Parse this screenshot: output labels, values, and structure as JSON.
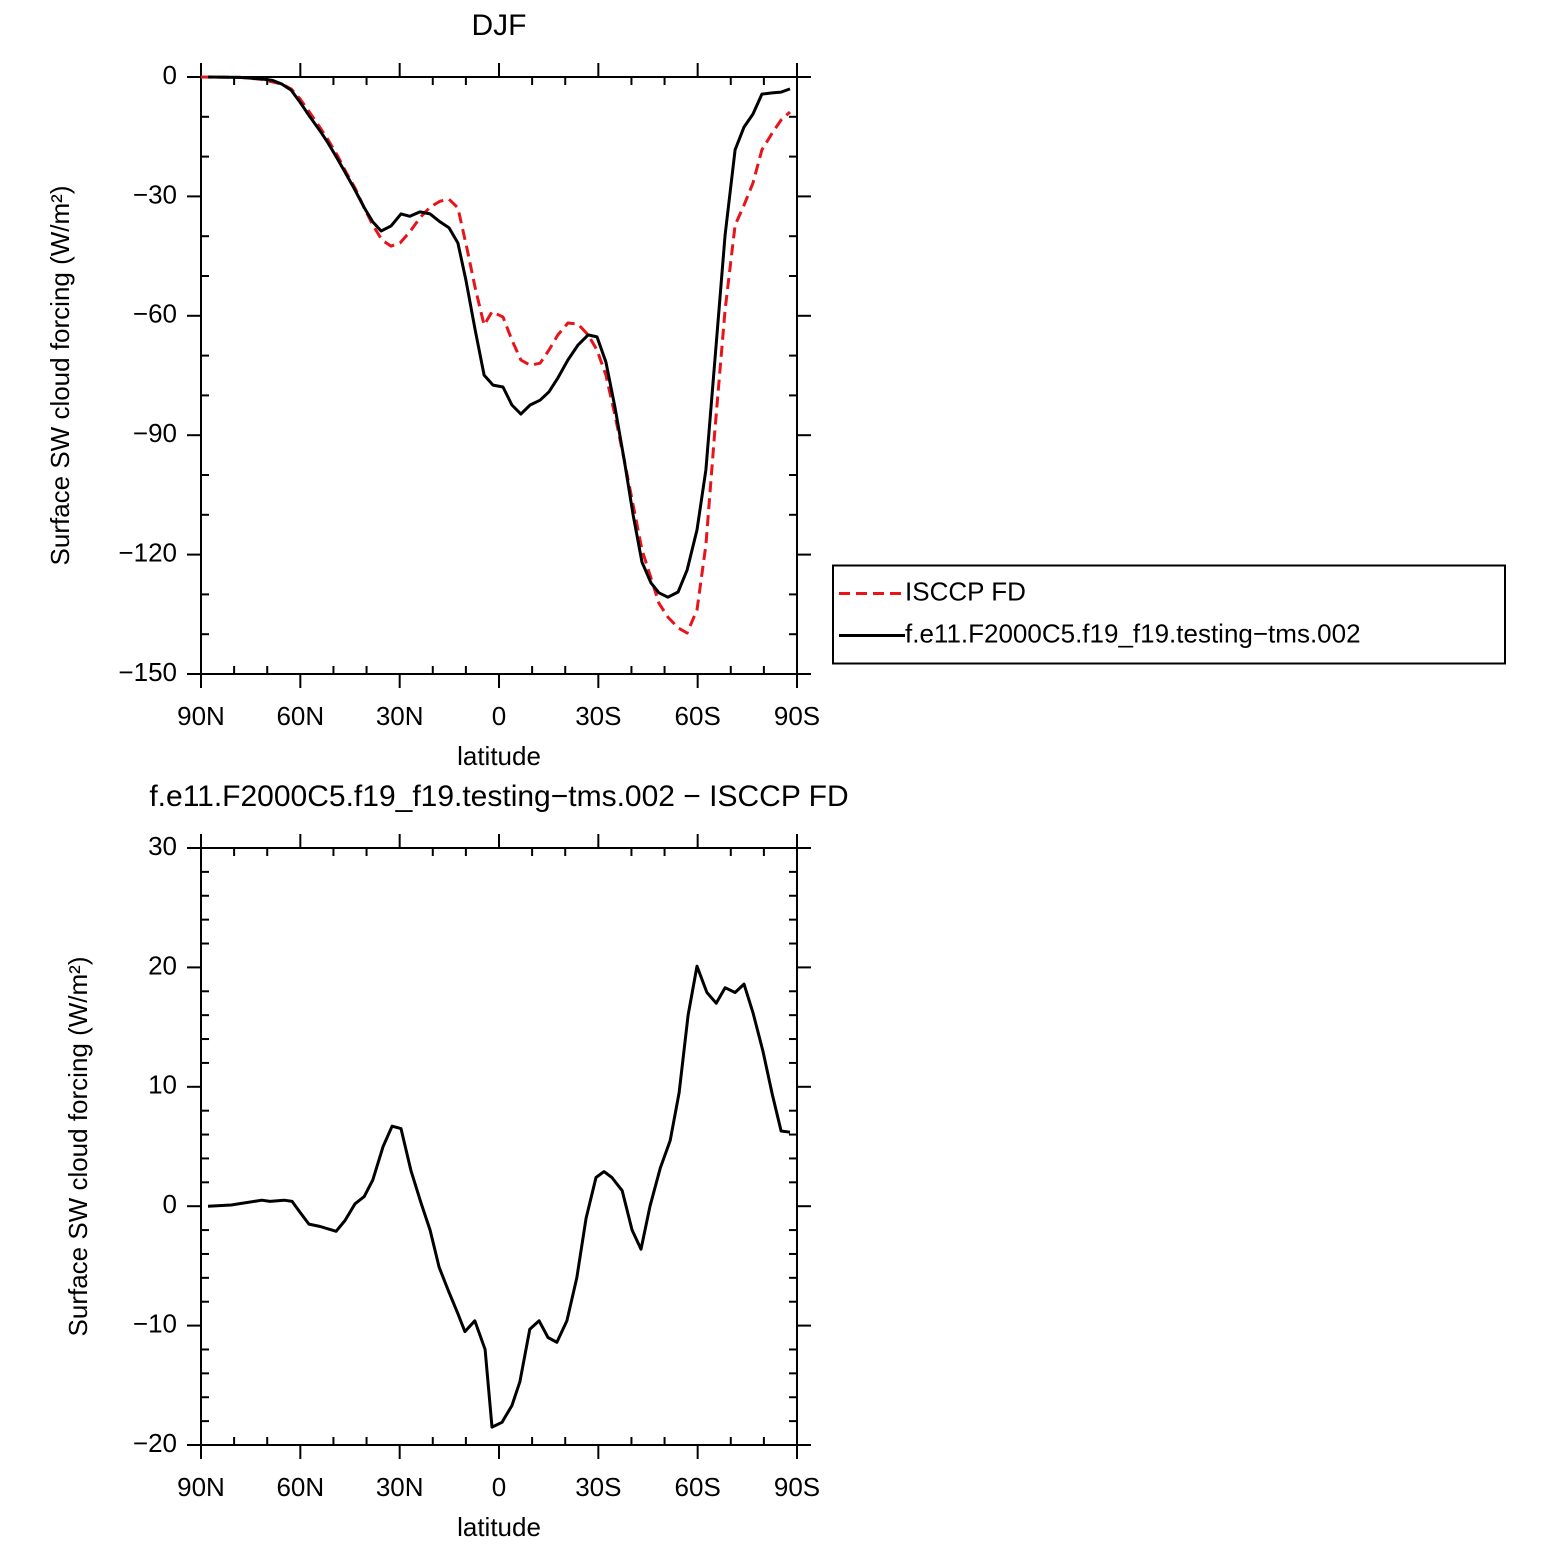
{
  "chart_data": [
    {
      "type": "line",
      "title": "DJF",
      "xlabel": "latitude",
      "ylabel": "Surface SW cloud forcing (W/m²)",
      "xlim": [
        90,
        -90
      ],
      "xticks": [
        {
          "value": 90,
          "label": "90N"
        },
        {
          "value": 60,
          "label": "60N"
        },
        {
          "value": 30,
          "label": "30N"
        },
        0,
        {
          "value": -30,
          "label": "30S"
        },
        {
          "value": -60,
          "label": "60S"
        },
        {
          "value": -90,
          "label": "90S"
        }
      ],
      "ylim": [
        -150,
        0
      ],
      "yticks": [
        0,
        {
          "value": -30,
          "label": "−30"
        },
        {
          "value": -60,
          "label": "−60"
        },
        {
          "value": -90,
          "label": "−90"
        },
        {
          "value": -120,
          "label": "−120"
        },
        {
          "value": -150,
          "label": "−150"
        }
      ],
      "legend": "right",
      "series": [
        {
          "name": "ISCCP FD",
          "color": "#e8141a",
          "dash": true,
          "x": [
            90,
            78.2,
            71.6,
            65.5,
            62.8,
            60.1,
            57.1,
            54.0,
            51.6,
            48.9,
            46.2,
            43.5,
            40.8,
            38.1,
            35.3,
            32.6,
            29.9,
            26.9,
            23.9,
            20.8,
            17.8,
            15.1,
            12.4,
            9.7,
            7.2,
            4.5,
            2.1,
            -1.2,
            -3.9,
            -6.6,
            -9.4,
            -12.4,
            -15.1,
            -17.8,
            -20.8,
            -23.9,
            -26.9,
            -29.6,
            -32.3,
            -35.0,
            -37.8,
            -40.5,
            -43.2,
            -45.9,
            -48.3,
            -51.0,
            -54.1,
            -56.8,
            -59.8,
            -62.5,
            -65.2,
            -68.3,
            -71.3,
            -74.0,
            -76.7,
            -79.4,
            -82.5,
            -85.2,
            -87.9
          ],
          "values": [
            0,
            -0.1,
            -0.6,
            -1.8,
            -3,
            -5.5,
            -9,
            -12.8,
            -15.8,
            -19.6,
            -23.9,
            -27.9,
            -32.7,
            -37.2,
            -41,
            -42.5,
            -41.7,
            -38.9,
            -35.4,
            -32.7,
            -31.2,
            -30.7,
            -32.9,
            -43,
            -53,
            -62.3,
            -59,
            -60.3,
            -66.1,
            -71.1,
            -72.4,
            -71.9,
            -68.6,
            -64.8,
            -61.8,
            -62.1,
            -64.8,
            -68.6,
            -74.9,
            -84.9,
            -96.2,
            -107.5,
            -118.8,
            -125.9,
            -132.2,
            -135.7,
            -138.4,
            -139.7,
            -133.9,
            -117.6,
            -88.7,
            -58.5,
            -37.2,
            -32.2,
            -26.6,
            -18.3,
            -14.1,
            -10.8,
            -8.8
          ]
        },
        {
          "name": "f.e11.F2000C5.f19_f19.testing−tms.002",
          "color": "#000000",
          "dash": false,
          "x": [
            87.9,
            78.2,
            71.6,
            68.6,
            65.5,
            62.8,
            60.1,
            57.1,
            54.0,
            51.6,
            48.9,
            46.5,
            43.5,
            40.8,
            38.1,
            35.6,
            32.6,
            29.6,
            26.9,
            23.9,
            20.8,
            17.8,
            15.1,
            12.4,
            10.0,
            7.2,
            4.5,
            1.8,
            -1.2,
            -3.9,
            -6.6,
            -9.4,
            -12.4,
            -15.1,
            -17.8,
            -20.8,
            -23.9,
            -26.9,
            -29.6,
            -32.3,
            -35.0,
            -37.8,
            -40.5,
            -43.2,
            -45.9,
            -48.3,
            -51.0,
            -54.1,
            -56.8,
            -59.8,
            -62.5,
            -65.2,
            -68.3,
            -71.3,
            -74.0,
            -76.7,
            -79.4,
            -82.5,
            -85.2,
            -87.9
          ],
          "values": [
            0,
            -0.1,
            -0.5,
            -0.8,
            -1.8,
            -3.3,
            -6.3,
            -10,
            -13.6,
            -16.6,
            -20.4,
            -23.9,
            -28.4,
            -32.7,
            -36.4,
            -38.7,
            -37.4,
            -34.4,
            -35,
            -33.9,
            -34.4,
            -36.4,
            -37.9,
            -41.7,
            -51,
            -63.6,
            -74.9,
            -77.4,
            -77.9,
            -82.4,
            -84.7,
            -82.4,
            -81.2,
            -79.1,
            -75.6,
            -71.1,
            -67.3,
            -64.8,
            -65.3,
            -71.6,
            -82.9,
            -96.2,
            -110,
            -121.9,
            -127.1,
            -129.6,
            -130.7,
            -129.4,
            -123.9,
            -113.8,
            -98.7,
            -71.1,
            -39.7,
            -18.3,
            -12.6,
            -9.3,
            -4.3,
            -4,
            -3.8,
            -3
          ]
        }
      ]
    },
    {
      "type": "line",
      "title": "f.e11.F2000C5.f19_f19.testing−tms.002 − ISCCP FD",
      "xlabel": "latitude",
      "ylabel": "Surface SW cloud forcing (W/m²)",
      "xlim": [
        90,
        -90
      ],
      "xticks": [
        {
          "value": 90,
          "label": "90N"
        },
        {
          "value": 60,
          "label": "60N"
        },
        {
          "value": 30,
          "label": "30N"
        },
        0,
        {
          "value": -30,
          "label": "30S"
        },
        {
          "value": -60,
          "label": "60S"
        },
        {
          "value": -90,
          "label": "90S"
        }
      ],
      "ylim": [
        -20,
        30
      ],
      "yticks": [
        30,
        20,
        10,
        0,
        {
          "value": -10,
          "label": "−10"
        },
        {
          "value": -20,
          "label": "−20"
        }
      ],
      "series": [
        {
          "color": "#000000",
          "x": [
            87.9,
            80.9,
            71.6,
            69.2,
            64.9,
            62.5,
            60.1,
            57.4,
            54.0,
            49.2,
            46.5,
            43.5,
            40.7,
            38.1,
            35.0,
            32.3,
            29.6,
            26.6,
            23.6,
            20.8,
            18.1,
            15.4,
            12.4,
            10.3,
            7.3,
            4.2,
            2.1,
            -0.9,
            -3.9,
            -6.3,
            -9.3,
            -12.1,
            -14.8,
            -17.5,
            -20.5,
            -23.5,
            -26.3,
            -29.3,
            -31.7,
            -34.1,
            -37.2,
            -40.2,
            -42.9,
            -45.6,
            -48.7,
            -51.7,
            -54.4,
            -57.1,
            -59.8,
            -62.8,
            -65.6,
            -68.3,
            -71.3,
            -74.0,
            -76.7,
            -79.7,
            -82.5,
            -85.2,
            -87.9
          ],
          "values": [
            0,
            0.1,
            0.5,
            0.4,
            0.5,
            0.4,
            -0.5,
            -1.5,
            -1.7,
            -2.1,
            -1.2,
            0.2,
            0.8,
            2.2,
            5,
            6.7,
            6.5,
            3,
            0.3,
            -2,
            -5.1,
            -7,
            -9,
            -10.5,
            -9.6,
            -12,
            -18.5,
            -18.1,
            -16.7,
            -14.7,
            -10.3,
            -9.6,
            -11,
            -11.4,
            -9.6,
            -6,
            -1,
            2.4,
            2.9,
            2.4,
            1.3,
            -2,
            -3.6,
            0,
            3.2,
            5.5,
            9.5,
            16,
            20.1,
            17.9,
            17,
            18.3,
            17.9,
            18.6,
            16.2,
            13,
            9.4,
            6.3,
            6.2
          ]
        }
      ]
    }
  ]
}
